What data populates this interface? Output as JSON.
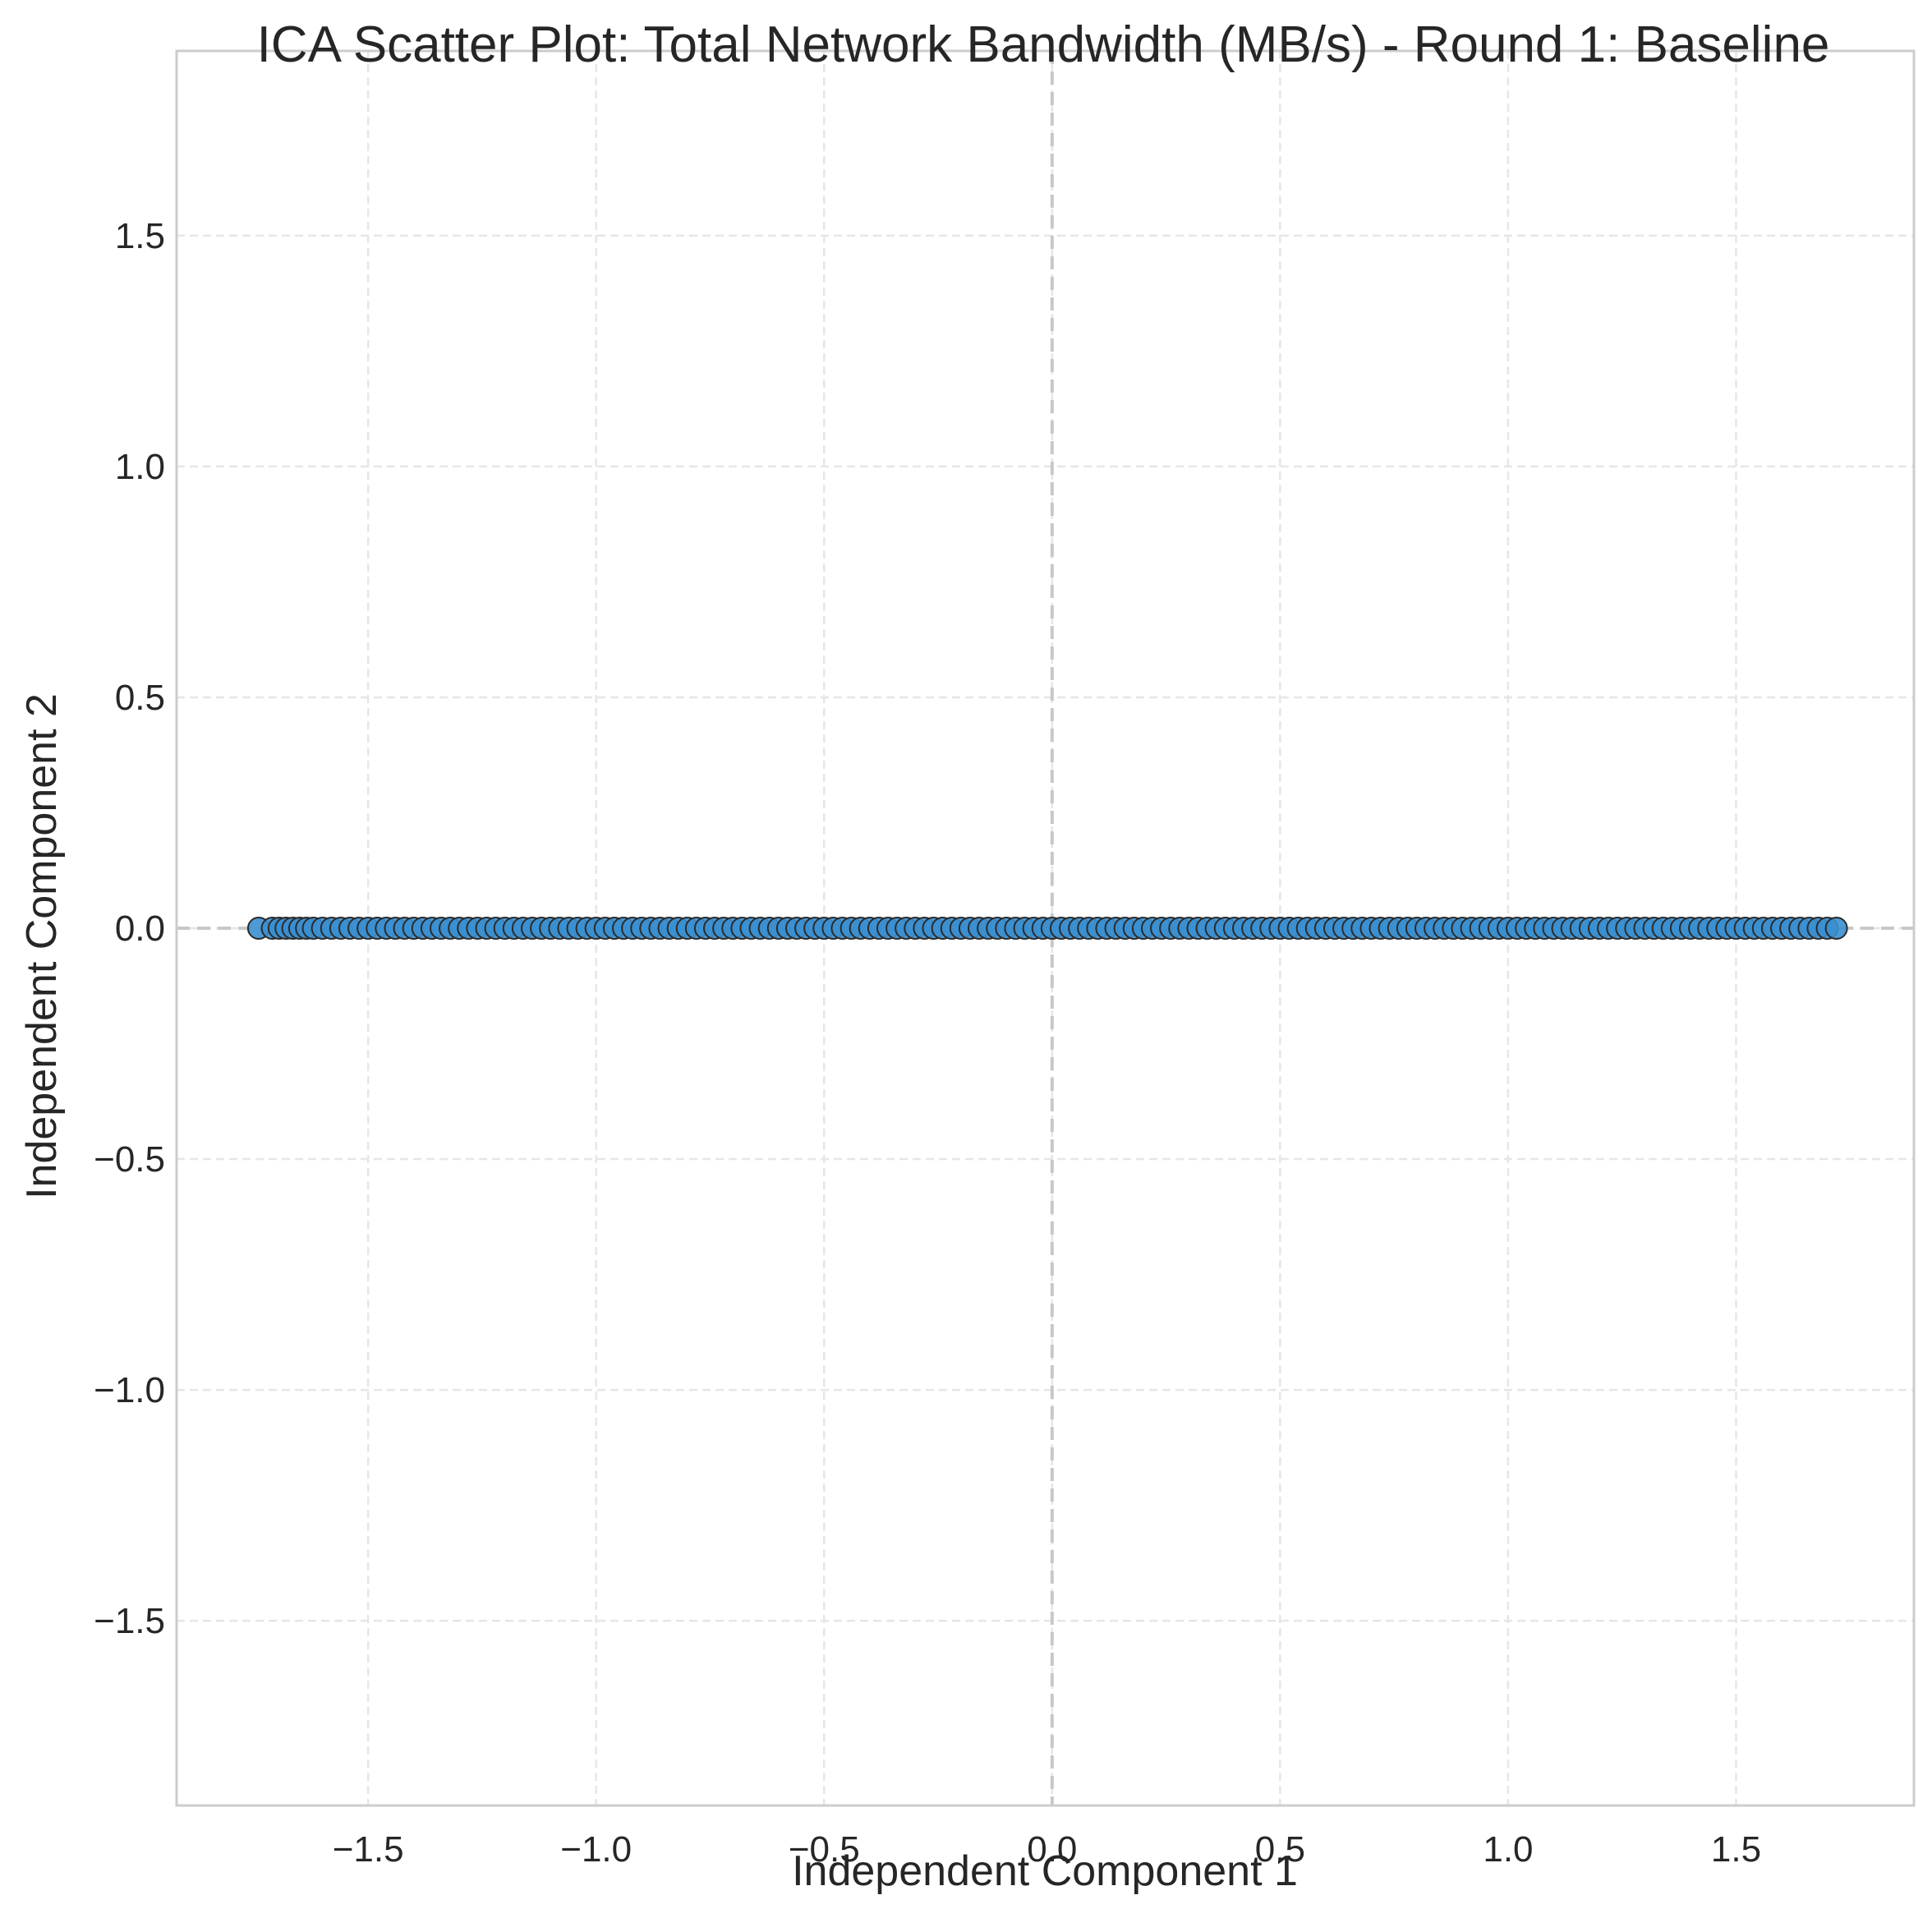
{
  "chart_data": {
    "type": "scatter",
    "title": "ICA Scatter Plot: Total Network Bandwidth (MB/s) - Round 1: Baseline",
    "xlabel": "Independent Component 1",
    "ylabel": "Independent Component 2",
    "xlim": [
      -1.92,
      1.89
    ],
    "ylim": [
      -1.9,
      1.9
    ],
    "xticks": [
      -1.5,
      -1.0,
      -0.5,
      0.0,
      0.5,
      1.0,
      1.5
    ],
    "yticks": [
      -1.5,
      -1.0,
      -0.5,
      0.0,
      0.5,
      1.0,
      1.5
    ],
    "xtick_labels": [
      "−1.5",
      "−1.0",
      "−0.5",
      "0.0",
      "0.5",
      "1.0",
      "1.5"
    ],
    "ytick_labels": [
      "−1.5",
      "−1.0",
      "−0.5",
      "0.0",
      "0.5",
      "1.0",
      "1.5"
    ],
    "grid": true,
    "reference_lines": {
      "x": 0,
      "y": 0
    },
    "series": [
      {
        "color": "#3a8fd0",
        "edge_color": "#2b2b2b",
        "y_value": 0.0,
        "x_points": [
          -1.74,
          -1.71,
          -1.695,
          -1.68,
          -1.665,
          -1.65,
          -1.635,
          -1.62,
          -1.6,
          -1.58,
          -1.56,
          -1.54,
          -1.52,
          -1.5,
          -1.48,
          -1.46,
          -1.44,
          -1.42,
          -1.4,
          -1.38,
          -1.36,
          -1.34,
          -1.32,
          -1.3,
          -1.28,
          -1.26,
          -1.24,
          -1.22,
          -1.2,
          -1.18,
          -1.16,
          -1.14,
          -1.12,
          -1.1,
          -1.08,
          -1.06,
          -1.04,
          -1.02,
          -1.0,
          -0.98,
          -0.96,
          -0.94,
          -0.92,
          -0.9,
          -0.88,
          -0.86,
          -0.84,
          -0.82,
          -0.8,
          -0.78,
          -0.76,
          -0.74,
          -0.72,
          -0.7,
          -0.68,
          -0.66,
          -0.64,
          -0.62,
          -0.6,
          -0.58,
          -0.56,
          -0.54,
          -0.52,
          -0.5,
          -0.48,
          -0.46,
          -0.44,
          -0.42,
          -0.4,
          -0.38,
          -0.36,
          -0.34,
          -0.32,
          -0.3,
          -0.28,
          -0.26,
          -0.24,
          -0.22,
          -0.2,
          -0.18,
          -0.16,
          -0.14,
          -0.12,
          -0.1,
          -0.08,
          -0.06,
          -0.04,
          -0.02,
          0.0,
          0.02,
          0.04,
          0.06,
          0.08,
          0.1,
          0.12,
          0.14,
          0.16,
          0.18,
          0.2,
          0.22,
          0.24,
          0.26,
          0.28,
          0.3,
          0.32,
          0.34,
          0.36,
          0.38,
          0.4,
          0.42,
          0.44,
          0.46,
          0.48,
          0.5,
          0.52,
          0.54,
          0.56,
          0.58,
          0.6,
          0.62,
          0.64,
          0.66,
          0.68,
          0.7,
          0.72,
          0.74,
          0.76,
          0.78,
          0.8,
          0.82,
          0.84,
          0.86,
          0.88,
          0.9,
          0.92,
          0.94,
          0.96,
          0.98,
          1.0,
          1.02,
          1.04,
          1.06,
          1.08,
          1.1,
          1.12,
          1.14,
          1.16,
          1.18,
          1.2,
          1.22,
          1.24,
          1.26,
          1.28,
          1.3,
          1.32,
          1.34,
          1.36,
          1.38,
          1.4,
          1.42,
          1.44,
          1.46,
          1.48,
          1.5,
          1.52,
          1.54,
          1.56,
          1.58,
          1.6,
          1.62,
          1.64,
          1.66,
          1.68,
          1.7,
          1.72
        ]
      }
    ]
  }
}
